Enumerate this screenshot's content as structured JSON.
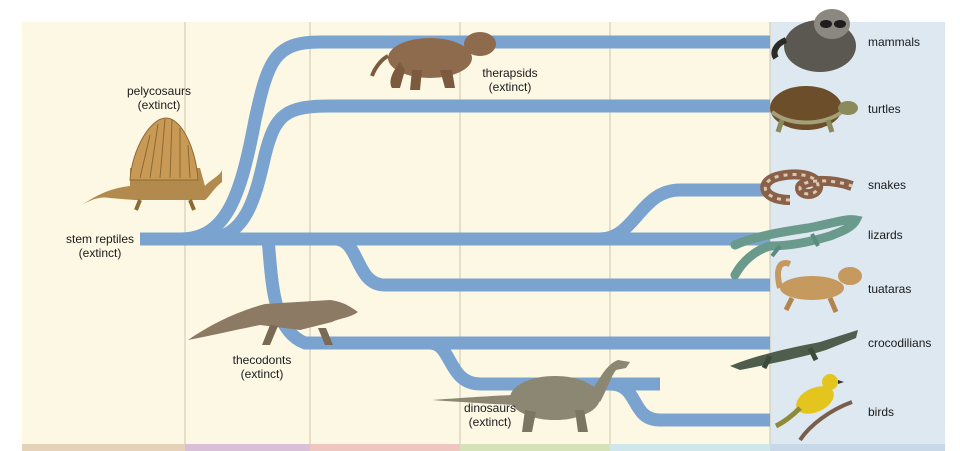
{
  "diagram": {
    "colors": {
      "background_panel": "#fdf8e4",
      "modern_panel": "#dde8f1",
      "branch": "#7aa4cf",
      "divider": "#cfc6ad"
    },
    "ancestor": {
      "name": "stem reptiles",
      "status": "(extinct)"
    },
    "extinct_groups": [
      {
        "name": "pelycosaurs",
        "status": "(extinct)",
        "icon": "dimetrodon-icon"
      },
      {
        "name": "therapsids",
        "status": "(extinct)",
        "icon": "therapsid-icon"
      },
      {
        "name": "thecodonts",
        "status": "(extinct)",
        "icon": "thecodont-icon"
      },
      {
        "name": "dinosaurs",
        "status": "(extinct)",
        "icon": "sauropod-icon"
      }
    ],
    "modern_groups": [
      {
        "name": "mammals",
        "icon": "raccoon-icon"
      },
      {
        "name": "turtles",
        "icon": "turtle-icon"
      },
      {
        "name": "snakes",
        "icon": "snake-icon"
      },
      {
        "name": "lizards",
        "icon": "lizard-icon"
      },
      {
        "name": "tuataras",
        "icon": "tuatara-icon"
      },
      {
        "name": "crocodilians",
        "icon": "crocodile-icon"
      },
      {
        "name": "birds",
        "icon": "bird-icon"
      }
    ]
  }
}
